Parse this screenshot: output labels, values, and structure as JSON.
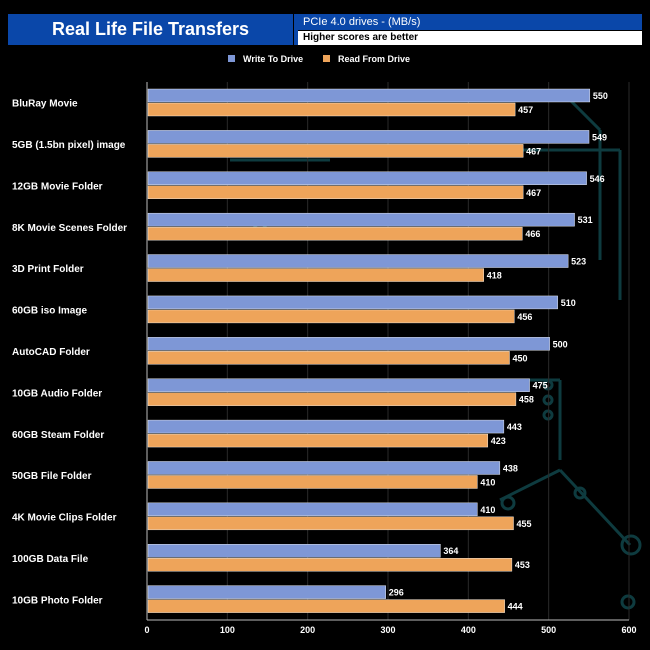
{
  "header": {
    "title": "Real Life File Transfers",
    "subtitle": "PCIe 4.0 drives - (MB/s)",
    "note": "Higher scores are better"
  },
  "colors": {
    "background": "#000000",
    "write": "#7e97d6",
    "read": "#eea45a",
    "grid": "#2a2a2a",
    "text": "#ffffff",
    "header_blue": "#0a47a9"
  },
  "chart_data": {
    "type": "bar",
    "orientation": "horizontal",
    "title": "Real Life File Transfers",
    "subtitle": "PCIe 4.0 drives - (MB/s)",
    "note": "Higher scores are better",
    "categories": [
      "BluRay Movie",
      "5GB (1.5bn pixel) image",
      "12GB Movie Folder",
      "8K Movie Scenes Folder",
      "3D Print Folder",
      "60GB iso Image",
      "AutoCAD Folder",
      "10GB Audio Folder",
      "60GB Steam Folder",
      "50GB File Folder",
      "4K Movie Clips Folder",
      "100GB Data File",
      "10GB Photo Folder"
    ],
    "series": [
      {
        "name": "Write To  Drive",
        "values": [
          550,
          549,
          546,
          531,
          523,
          510,
          500,
          475,
          443,
          438,
          410,
          364,
          296
        ]
      },
      {
        "name": "Read From  Drive",
        "values": [
          457,
          467,
          467,
          466,
          418,
          456,
          450,
          458,
          423,
          410,
          455,
          453,
          444
        ]
      }
    ],
    "xlim": [
      0,
      600
    ],
    "xticks": [
      0,
      100,
      200,
      300,
      400,
      500,
      600
    ],
    "legend_position": "top-center",
    "grid": true
  }
}
